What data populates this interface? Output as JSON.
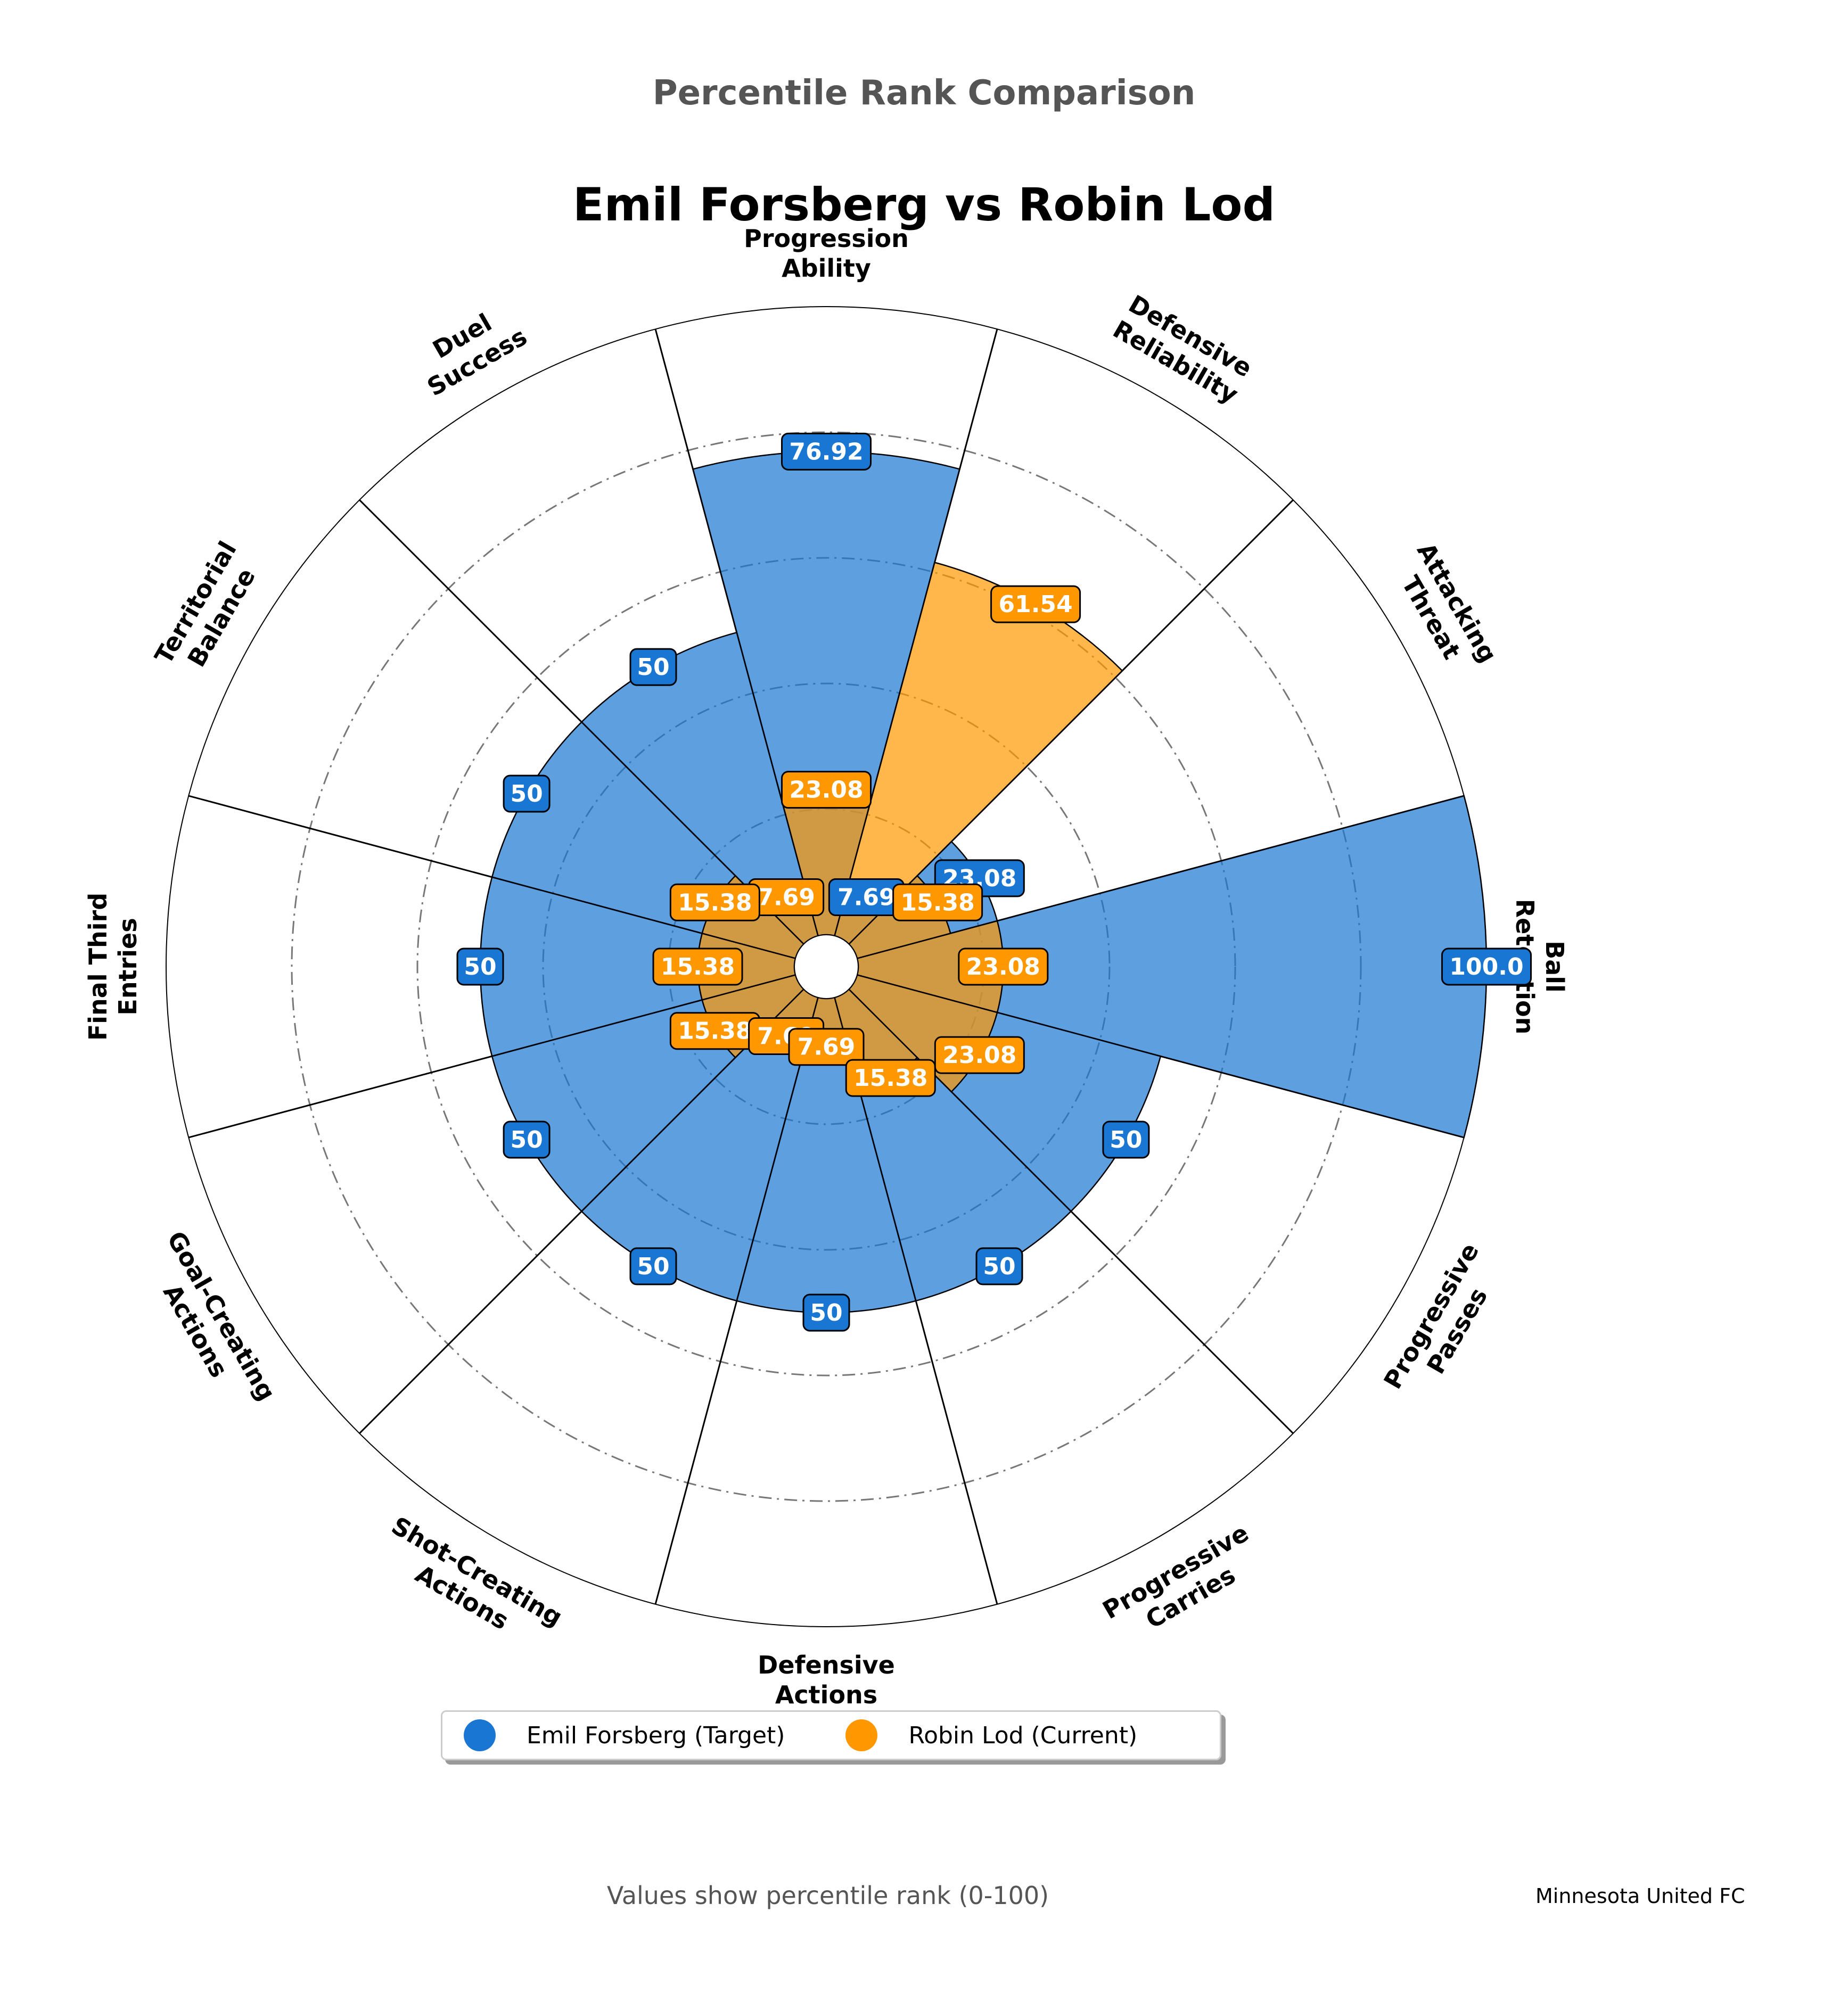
{
  "header": {
    "suptitle": "Percentile Rank Comparison",
    "title": "Emil Forsberg vs Robin Lod"
  },
  "legend": {
    "target_label": "Emil Forsberg (Target)",
    "current_label": "Robin Lod (Current)"
  },
  "footer": {
    "note": "Values show percentile rank (0-100)",
    "team": "Minnesota United FC"
  },
  "colors": {
    "target": "#1976d2",
    "current": "#ff9800"
  },
  "chart_data": {
    "type": "polar-bar",
    "rlim": [
      0,
      100
    ],
    "grid_rings": [
      20,
      40,
      60,
      80
    ],
    "grid": true,
    "legend_position": "bottom-center",
    "categories": [
      "Ball\nRetention",
      "Attacking\nThreat",
      "Defensive\nReliability",
      "Progression\nAbility",
      "Duel\nSuccess",
      "Territorial\nBalance",
      "Final Third\nEntries",
      "Goal-Creating\nActions",
      "Shot-Creating\nActions",
      "Defensive\nActions",
      "Progressive\nCarries",
      "Progressive\nPasses"
    ],
    "series": [
      {
        "name": "Emil Forsberg (Target)",
        "values": [
          100.0,
          23.08,
          7.69,
          76.92,
          50,
          50,
          50,
          50,
          50,
          50,
          50,
          50
        ],
        "labels": [
          "100.0",
          "23.08",
          "7.69",
          "76.92",
          "50",
          "50",
          "50",
          "50",
          "50",
          "50",
          "50",
          "50"
        ]
      },
      {
        "name": "Robin Lod (Current)",
        "values": [
          23.08,
          15.38,
          61.54,
          23.08,
          7.69,
          15.38,
          15.38,
          15.38,
          7.69,
          7.69,
          15.38,
          23.08
        ],
        "labels": [
          "23.08",
          "15.38",
          "61.54",
          "23.08",
          "7.69",
          "15.38",
          "15.38",
          "15.38",
          "7.69",
          "7.69",
          "15.38",
          "23.08"
        ]
      }
    ]
  }
}
